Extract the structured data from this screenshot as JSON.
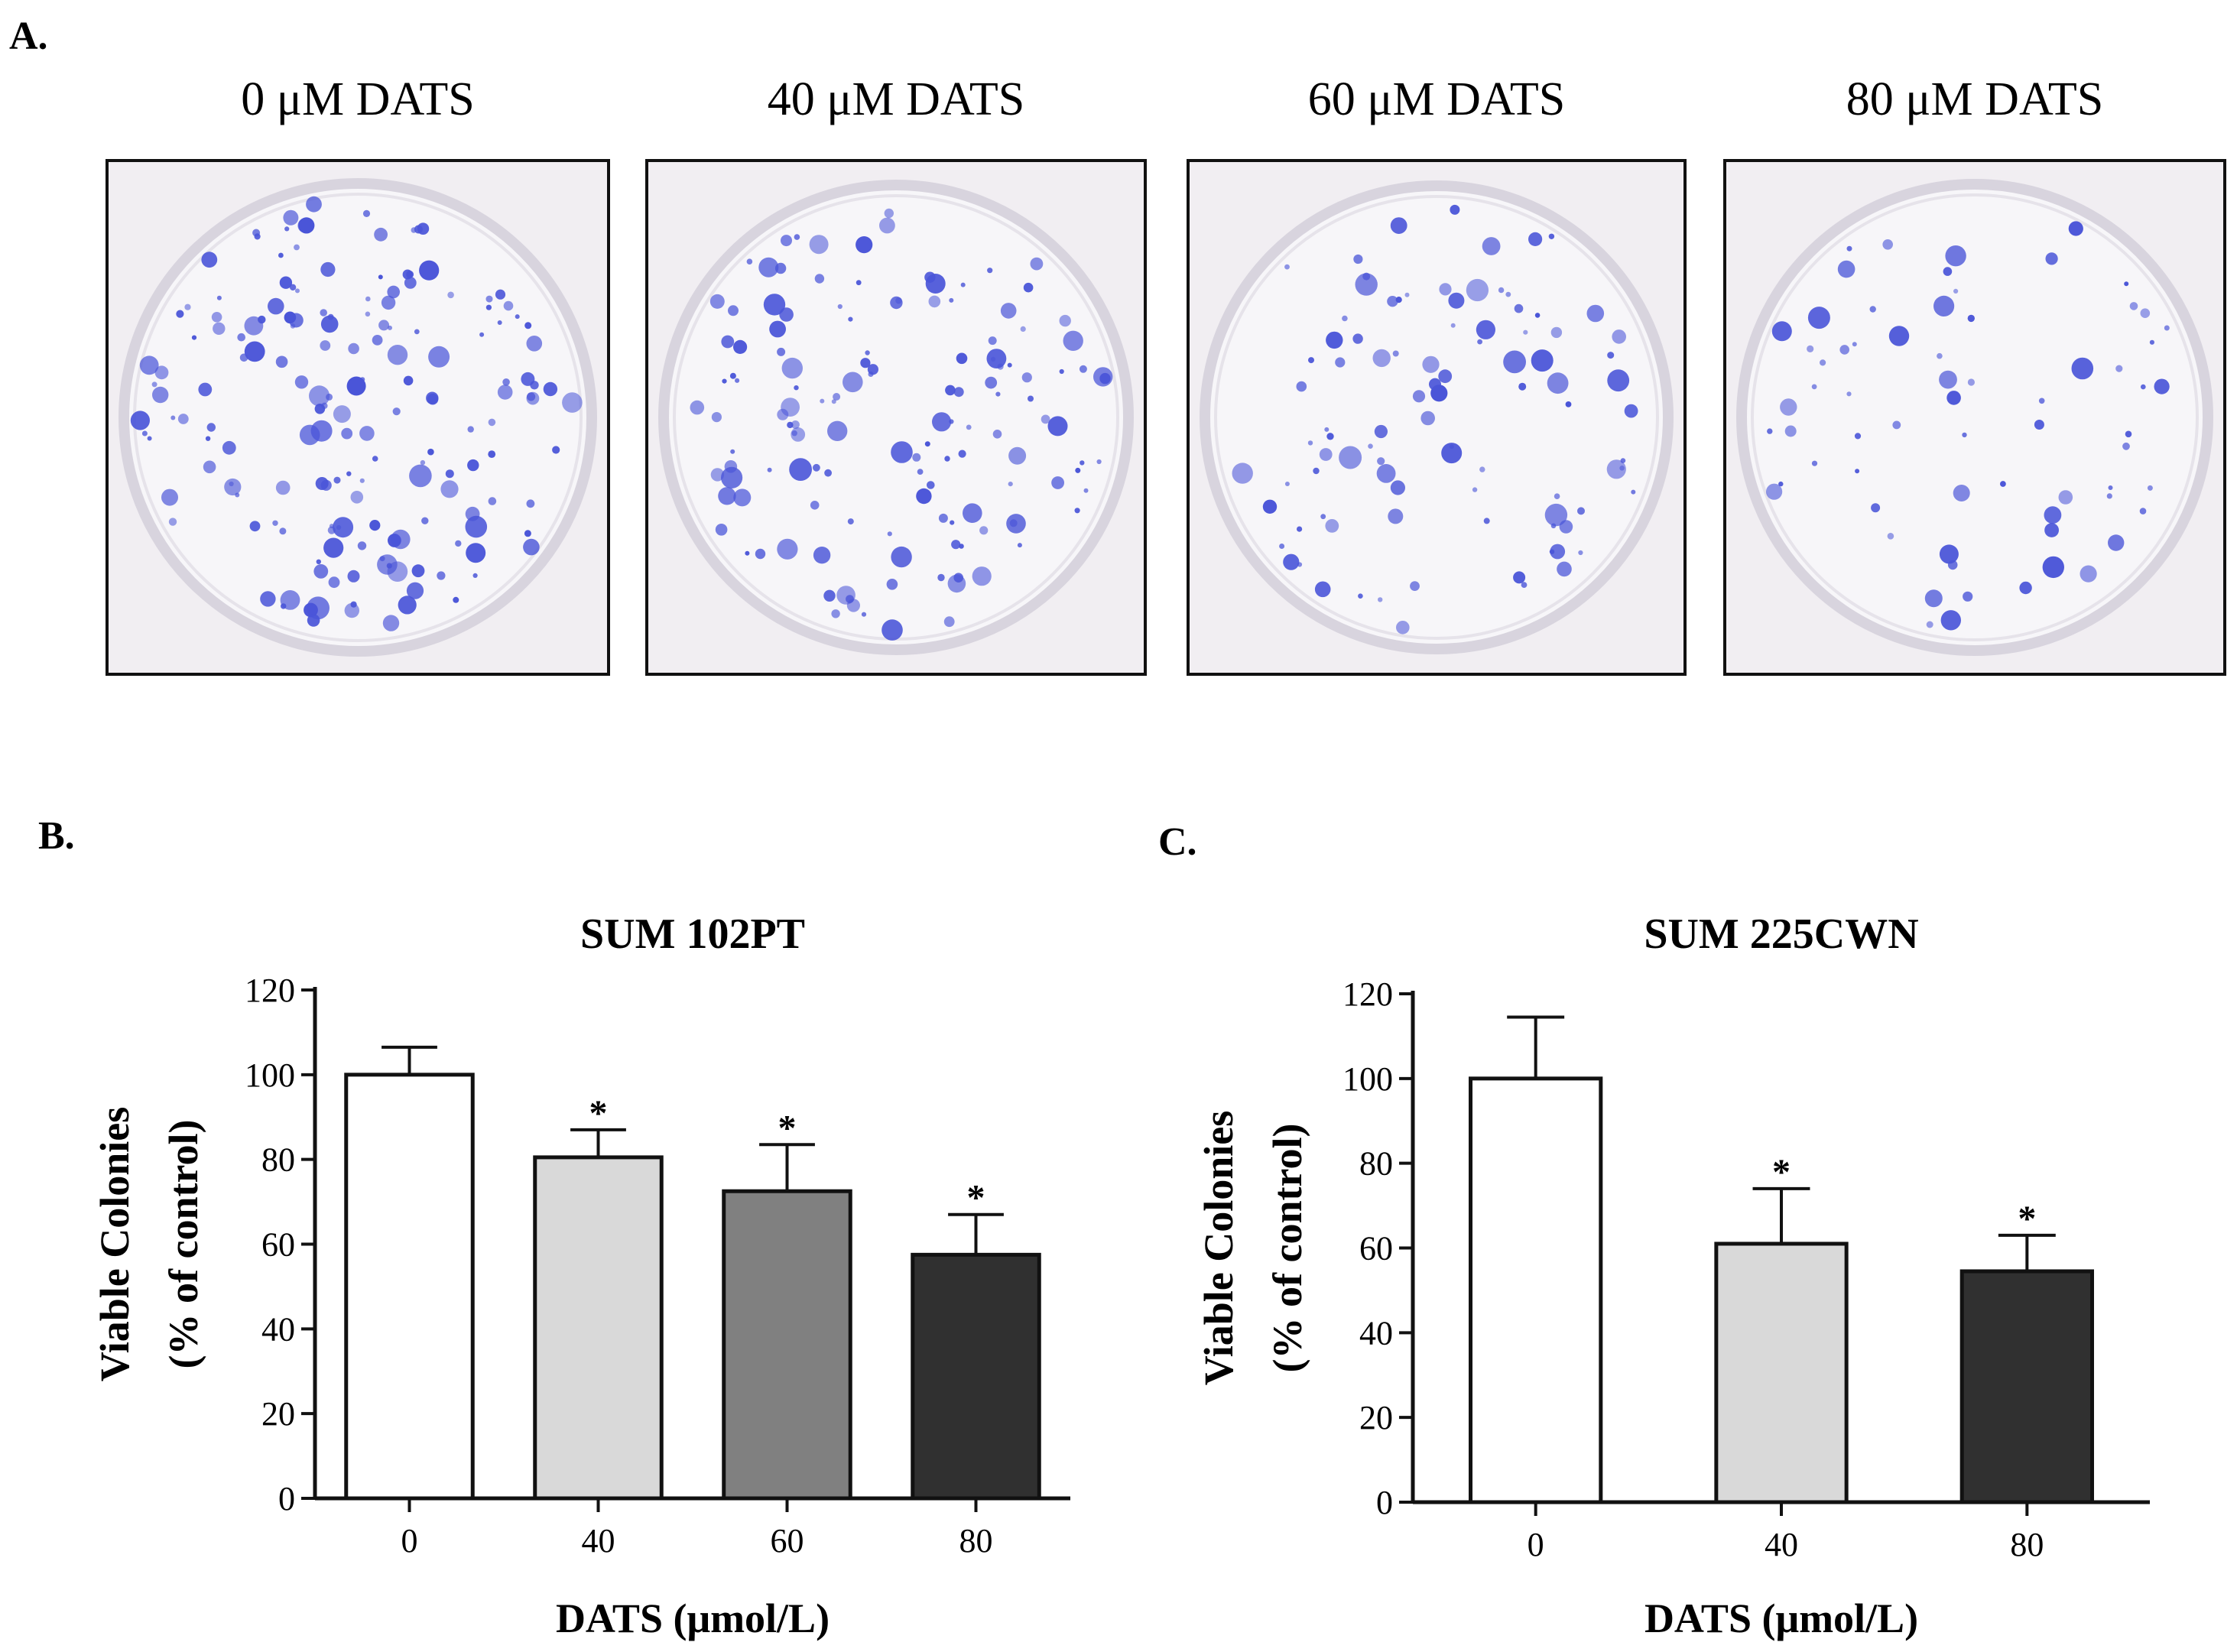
{
  "panel_a": {
    "label": "A.",
    "plates": [
      {
        "title": "0 μM DATS",
        "colony_density": 1.0
      },
      {
        "title": "40 μM DATS",
        "colony_density": 0.8
      },
      {
        "title": "60 μM DATS",
        "colony_density": 0.55
      },
      {
        "title": "80 μM DATS",
        "colony_density": 0.4
      }
    ],
    "plate_background": "#f1eef2",
    "dish_rim": "#d8d4de",
    "colony_color": "#4a55d8"
  },
  "chart_data": [
    {
      "panel_label": "B.",
      "type": "bar",
      "title": "SUM 102PT",
      "categories": [
        "0",
        "40",
        "60",
        "80"
      ],
      "values": [
        100,
        80.5,
        72.5,
        57.5
      ],
      "errors": [
        6.5,
        6.5,
        11,
        9.5
      ],
      "significance": [
        "",
        "*",
        "*",
        "*"
      ],
      "colors": [
        "#ffffff",
        "#d9d9d9",
        "#808080",
        "#303030"
      ],
      "xlabel": "DATS (μmol/L)",
      "ylabel_line1": "Viable Colonies",
      "ylabel_line2": "(% of control)",
      "ylim": [
        0,
        120
      ],
      "yticks": [
        "0",
        "20",
        "40",
        "60",
        "80",
        "100",
        "120"
      ],
      "grid": false
    },
    {
      "panel_label": "C.",
      "type": "bar",
      "title": "SUM 225CWN",
      "categories": [
        "0",
        "40",
        "80"
      ],
      "values": [
        100,
        61,
        54.5
      ],
      "errors": [
        14.5,
        13,
        8.5
      ],
      "significance": [
        "",
        "*",
        "*"
      ],
      "colors": [
        "#ffffff",
        "#d9d9d9",
        "#303030"
      ],
      "xlabel": "DATS (μmol/L)",
      "ylabel_line1": "Viable Colonies",
      "ylabel_line2": "(% of control)",
      "ylim": [
        0,
        120
      ],
      "yticks": [
        "0",
        "20",
        "40",
        "60",
        "80",
        "100",
        "120"
      ],
      "grid": false
    }
  ]
}
